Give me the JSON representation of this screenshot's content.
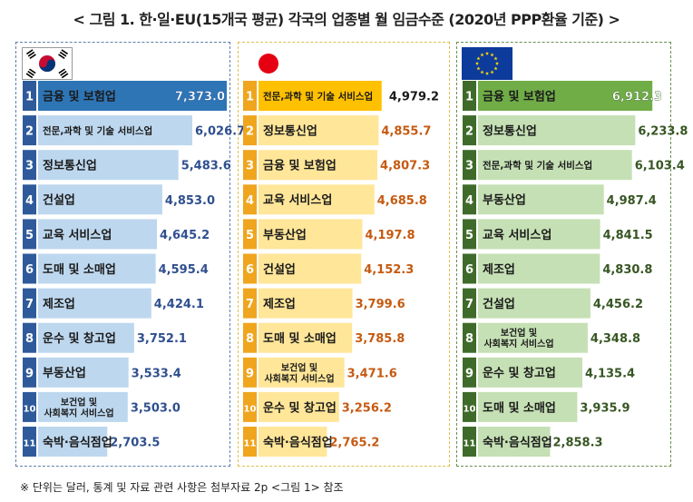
{
  "title": "< 그림 1. 한·일·EU(15개국 평균) 각국의 업종별 월 임금수준 (2020년 PPP환율 기준) >",
  "footnote": "※ 단위는 달러, 통계 및 자료 관련 사항은 첨부자료 2p <그림 1> 참조",
  "flags": {
    "korea": "korea-flag-icon",
    "japan": "japan-flag-icon",
    "eu": "eu-flag-icon"
  },
  "colors": {
    "korea": {
      "rank_bg": "#2e5a9b",
      "bar_top": "#2e75b6",
      "bar": "#bdd7ee",
      "value": "#2f4f8f"
    },
    "japan": {
      "rank_bg": "#f0a51e",
      "bar_top": "#ffc000",
      "bar": "#ffe699",
      "value": "#c55a11"
    },
    "eu": {
      "rank_bg": "#3f6b2a",
      "bar_top": "#70ad47",
      "bar": "#c5e0b4",
      "value": "#375623"
    }
  },
  "chart_data": [
    {
      "type": "bar",
      "name": "korea",
      "categories": [
        "금융 및 보험업",
        "전문,과학 및 기술 서비스업",
        "정보통신업",
        "건설업",
        "교육 서비스업",
        "도매 및 소매업",
        "제조업",
        "운수 및 창고업",
        "부동산업",
        "보건업 및|사회복지 서비스업",
        "숙박·음식점업"
      ],
      "values": [
        7373.0,
        6026.7,
        5483.6,
        4853.0,
        4645.2,
        4595.4,
        4424.1,
        3752.1,
        3533.4,
        3503.0,
        2703.5
      ],
      "value_labels": [
        "7,373.0",
        "6,026.7",
        "5,483.6",
        "4,853.0",
        "4,645.2",
        "4,595.4",
        "4,424.1",
        "3,752.1",
        "3,533.4",
        "3,503.0",
        "2,703.5"
      ],
      "ranks": [
        "1",
        "2",
        "3",
        "4",
        "5",
        "6",
        "7",
        "8",
        "9",
        "10",
        "11"
      ]
    },
    {
      "type": "bar",
      "name": "japan",
      "categories": [
        "전문,과학 및 기술 서비스업",
        "정보통신업",
        "금융 및 보험업",
        "교육 서비스업",
        "부동산업",
        "건설업",
        "제조업",
        "도매 및 소매업",
        "보건업 및|사회복지 서비스업",
        "운수 및 창고업",
        "숙박·음식점업"
      ],
      "values": [
        4979.2,
        4855.7,
        4807.3,
        4685.8,
        4197.8,
        4152.3,
        3799.6,
        3785.8,
        3471.6,
        3256.2,
        2765.2
      ],
      "value_labels": [
        "4,979.2",
        "4,855.7",
        "4,807.3",
        "4,685.8",
        "4,197.8",
        "4,152.3",
        "3,799.6",
        "3,785.8",
        "3,471.6",
        "3,256.2",
        "2,765.2"
      ],
      "ranks": [
        "1",
        "2",
        "3",
        "4",
        "5",
        "6",
        "7",
        "8",
        "9",
        "10",
        "11"
      ]
    },
    {
      "type": "bar",
      "name": "eu",
      "categories": [
        "금융 및 보험업",
        "정보통신업",
        "전문,과학 및 기술 서비스업",
        "부동산업",
        "교육 서비스업",
        "제조업",
        "건설업",
        "보건업 및|사회복지 서비스업",
        "운수 및 창고업",
        "도매 및 소매업",
        "숙박·음식점업"
      ],
      "values": [
        6912.3,
        6233.8,
        6103.4,
        4987.4,
        4841.5,
        4830.8,
        4456.2,
        4348.8,
        4135.4,
        3935.9,
        2858.3
      ],
      "value_labels": [
        "6,912.3",
        "6,233.8",
        "6,103.4",
        "4,987.4",
        "4,841.5",
        "4,830.8",
        "4,456.2",
        "4,348.8",
        "4,135.4",
        "3,935.9",
        "2,858.3"
      ],
      "ranks": [
        "1",
        "2",
        "3",
        "4",
        "5",
        "6",
        "7",
        "8",
        "9",
        "10",
        "11"
      ]
    }
  ]
}
